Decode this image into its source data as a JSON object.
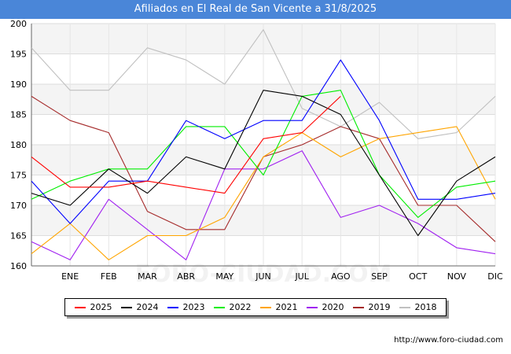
{
  "header": {
    "title": "Afiliados en El Real de San Vicente a 31/8/2025"
  },
  "watermark": "FORO-CIUDAD.COM",
  "source": "http://www.foro-ciudad.com",
  "chart_data": {
    "type": "line",
    "categories": [
      "",
      "ENE",
      "FEB",
      "MAR",
      "ABR",
      "MAY",
      "JUN",
      "JUL",
      "AGO",
      "SEP",
      "OCT",
      "NOV",
      "DIC"
    ],
    "ylim": [
      160,
      200
    ],
    "yticks": [
      "160",
      "165",
      "170",
      "175",
      "180",
      "185",
      "190",
      "195",
      "200"
    ],
    "grid": true,
    "legend_position": "bottom",
    "series": [
      {
        "name": "2025",
        "color": "#ff0000",
        "values": [
          178,
          173,
          173,
          174,
          173,
          172,
          181,
          182,
          188,
          null,
          null,
          null,
          null
        ]
      },
      {
        "name": "2024",
        "color": "#000000",
        "values": [
          172,
          170,
          176,
          172,
          178,
          176,
          189,
          188,
          185,
          175,
          165,
          174,
          178
        ]
      },
      {
        "name": "2023",
        "color": "#0000ff",
        "values": [
          174,
          167,
          174,
          174,
          184,
          181,
          184,
          184,
          194,
          184,
          171,
          171,
          172
        ]
      },
      {
        "name": "2022",
        "color": "#00ee00",
        "values": [
          171,
          174,
          176,
          176,
          183,
          183,
          175,
          188,
          189,
          175,
          168,
          173,
          174
        ]
      },
      {
        "name": "2021",
        "color": "#ffa500",
        "values": [
          162,
          167,
          161,
          165,
          165,
          168,
          178,
          182,
          178,
          181,
          182,
          183,
          171
        ]
      },
      {
        "name": "2020",
        "color": "#a020f0",
        "values": [
          164,
          161,
          171,
          166,
          161,
          176,
          176,
          179,
          168,
          170,
          167,
          163,
          162
        ]
      },
      {
        "name": "2019",
        "color": "#a52a2a",
        "values": [
          188,
          184,
          182,
          169,
          166,
          166,
          178,
          180,
          183,
          181,
          170,
          170,
          164
        ]
      },
      {
        "name": "2018",
        "color": "#c0c0c0",
        "values": [
          196,
          189,
          189,
          196,
          194,
          190,
          199,
          186,
          183,
          187,
          181,
          182,
          188
        ]
      }
    ]
  }
}
